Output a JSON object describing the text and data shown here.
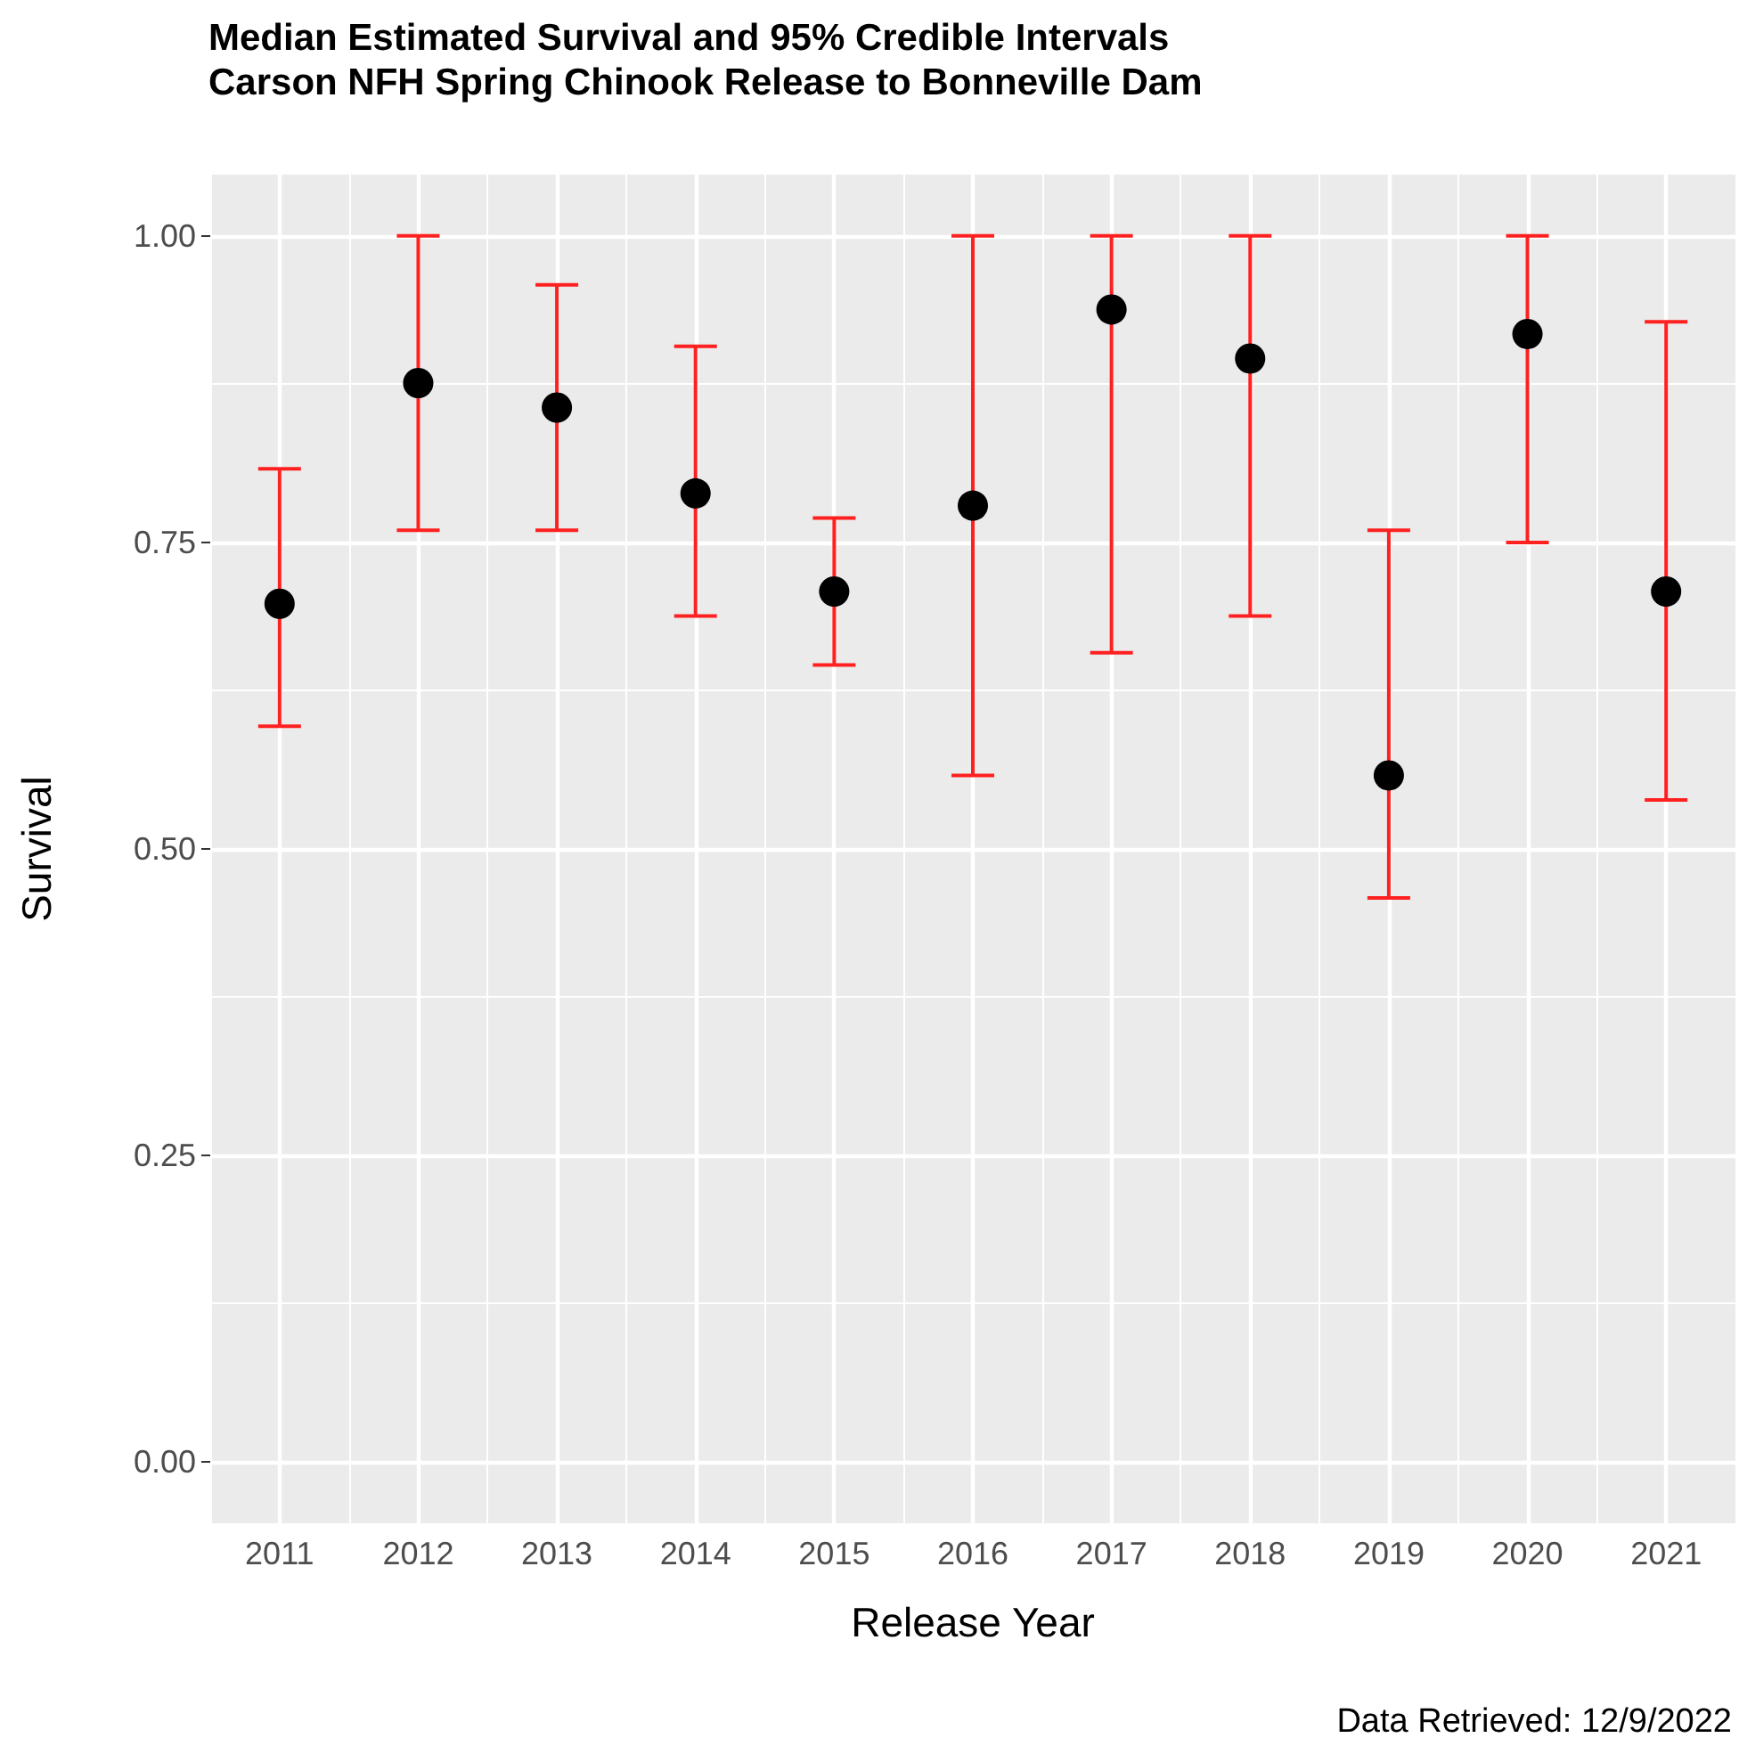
{
  "chart_data": {
    "type": "scatter",
    "title": "Median Estimated Survival and 95% Credible Intervals\nCarson NFH Spring Chinook Release to Bonneville Dam",
    "xlabel": "Release Year",
    "ylabel": "Survival",
    "annotations": [
      "Data Retrieved: 12/9/2022"
    ],
    "categories": [
      "2011",
      "2012",
      "2013",
      "2014",
      "2015",
      "2016",
      "2017",
      "2018",
      "2019",
      "2020",
      "2021"
    ],
    "series": [
      {
        "color": "#000000",
        "values": [
          0.7,
          0.88,
          0.86,
          0.79,
          0.71,
          0.78,
          0.94,
          0.9,
          0.56,
          0.92,
          0.71
        ],
        "errors": [
          [
            0.6,
            0.81
          ],
          [
            0.76,
            1.0
          ],
          [
            0.76,
            0.96
          ],
          [
            0.69,
            0.91
          ],
          [
            0.65,
            0.77
          ],
          [
            0.56,
            1.0
          ],
          [
            0.66,
            1.0
          ],
          [
            0.69,
            1.0
          ],
          [
            0.46,
            0.76
          ],
          [
            0.75,
            1.0
          ],
          [
            0.54,
            0.93
          ]
        ]
      }
    ],
    "ylim": [
      -0.05,
      1.05
    ],
    "yticks": [
      {
        "value": 0,
        "label": "0.00"
      },
      {
        "value": 0.25,
        "label": "0.25"
      },
      {
        "value": 0.5,
        "label": "0.50"
      },
      {
        "value": 0.75,
        "label": "0.75"
      },
      {
        "value": 1,
        "label": "1.00"
      }
    ],
    "grid": true,
    "marker": "circle"
  }
}
